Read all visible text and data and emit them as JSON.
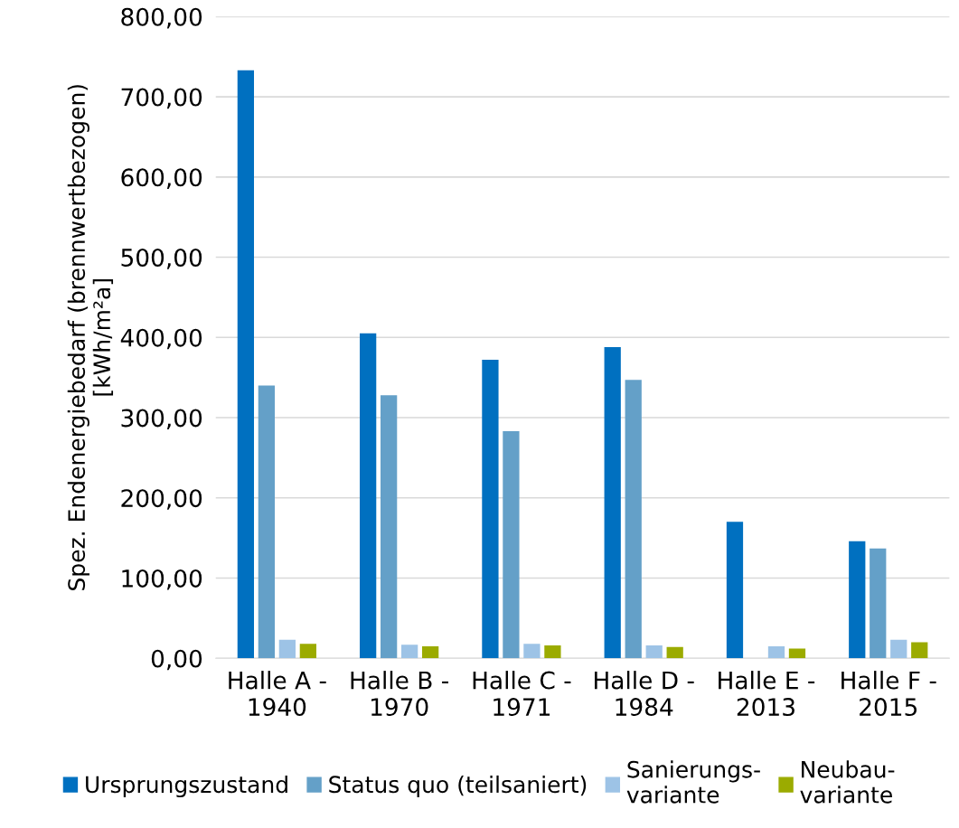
{
  "chart_data": {
    "type": "bar",
    "ylabel": "Spez. Endenergiebedarf (brennwertbezogen)\n[kWh/m²a]",
    "categories": [
      "Halle A -\n1940",
      "Halle B -\n1970",
      "Halle C -\n1971",
      "Halle D -\n1984",
      "Halle E -\n2013",
      "Halle F -\n2015"
    ],
    "series": [
      {
        "name": "Ursprungszustand",
        "color": "#0070c0",
        "values": [
          733,
          405,
          372,
          388,
          170,
          146
        ]
      },
      {
        "name": "Status quo (teilsaniert)",
        "color": "#64a0c8",
        "values": [
          340,
          328,
          283,
          347,
          null,
          137
        ]
      },
      {
        "name": "Sanierungs-\nvariante",
        "color": "#9dc3e6",
        "values": [
          23,
          17,
          18,
          16,
          15,
          23
        ]
      },
      {
        "name": "Neubau-\nvariante",
        "color": "#9bab00",
        "values": [
          18,
          15,
          16,
          14,
          12,
          20
        ]
      }
    ],
    "ylim": [
      0,
      800
    ],
    "yticks": [
      {
        "value": 0,
        "label": "0,00"
      },
      {
        "value": 100,
        "label": "100,00"
      },
      {
        "value": 200,
        "label": "200,00"
      },
      {
        "value": 300,
        "label": "300,00"
      },
      {
        "value": 400,
        "label": "400,00"
      },
      {
        "value": 500,
        "label": "500,00"
      },
      {
        "value": 600,
        "label": "600,00"
      },
      {
        "value": 700,
        "label": "700,00"
      },
      {
        "value": 800,
        "label": "800,00"
      }
    ],
    "grid": "y",
    "legend": "bottom"
  }
}
